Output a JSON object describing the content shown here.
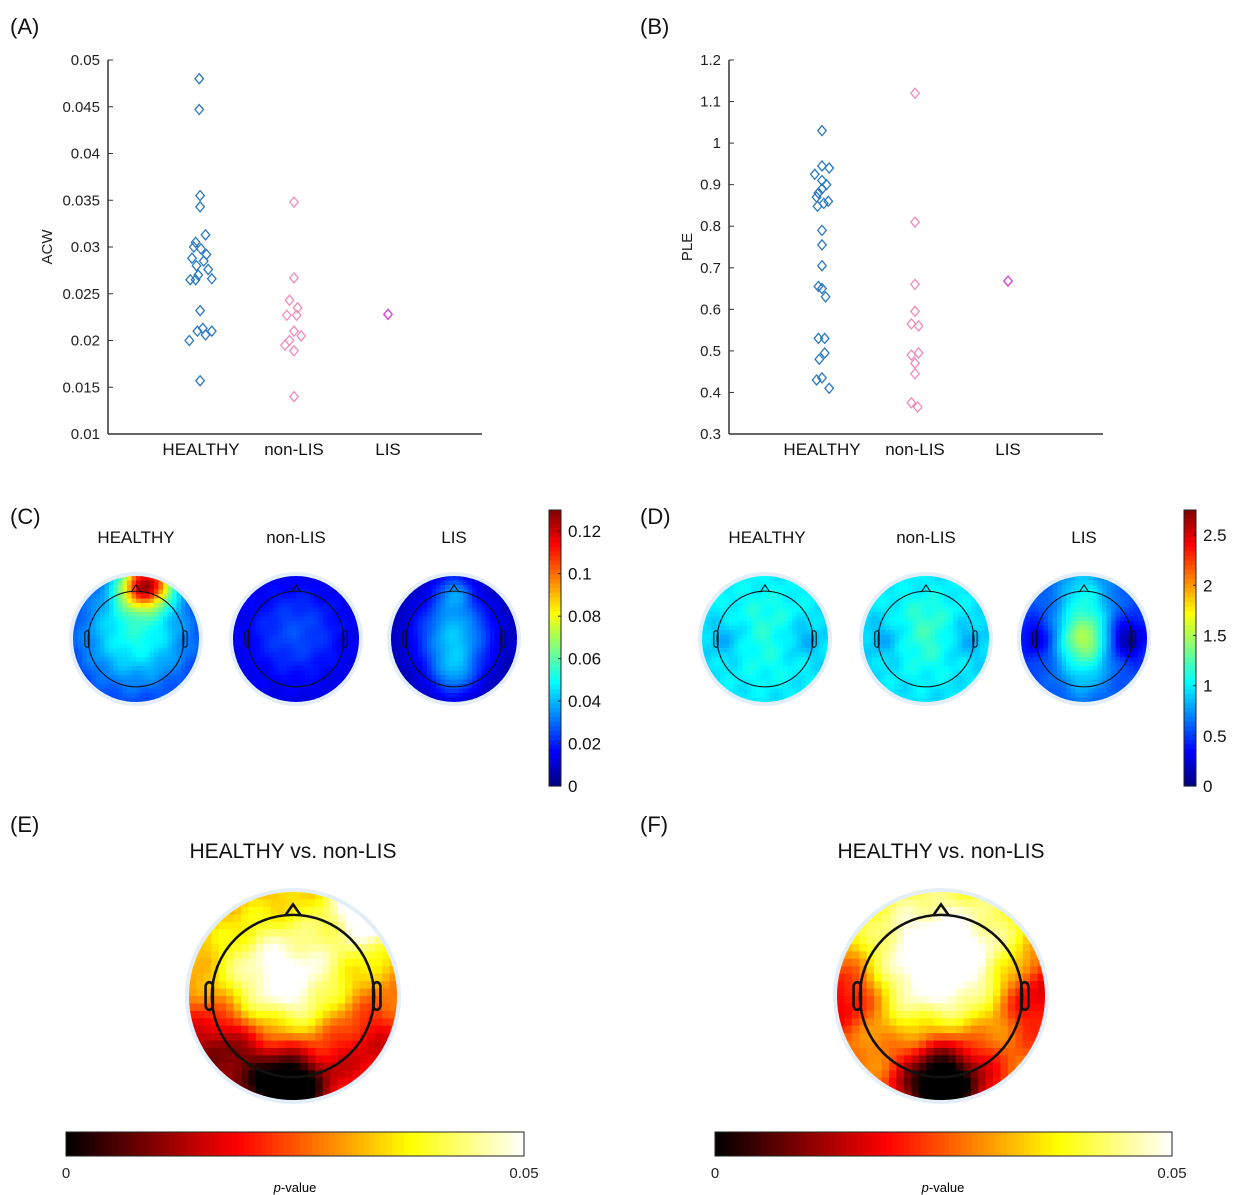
{
  "panel_labels": [
    "(A)",
    "(B)",
    "(C)",
    "(D)",
    "(E)",
    "(F)"
  ],
  "groups": [
    "HEALTHY",
    "non-LIS",
    "LIS"
  ],
  "contrast_title": "HEALTHY vs. non-LIS",
  "colors": {
    "healthy": "#2a78c0",
    "nonlis": "#f18bbd",
    "lis": "#e13ad8"
  },
  "chart_data": [
    {
      "panel": "A",
      "type": "scatter",
      "ylabel": "ACW",
      "ylim": [
        0.01,
        0.05
      ],
      "yticks": [
        0.01,
        0.015,
        0.02,
        0.025,
        0.03,
        0.035,
        0.04,
        0.045,
        0.05
      ],
      "ytick_labels": [
        "0.01",
        "0.015",
        "0.02",
        "0.025",
        "0.03",
        "0.035",
        "0.04",
        "0.045",
        "0.05"
      ],
      "categories": [
        "HEALTHY",
        "non-LIS",
        "LIS"
      ],
      "series": [
        {
          "category": "HEALTHY",
          "marker": "diamond",
          "color_key": "healthy",
          "points": [
            [
              -0.02,
              0.048
            ],
            [
              -0.02,
              0.0447
            ],
            [
              -0.01,
              0.0355
            ],
            [
              -0.01,
              0.0343
            ],
            [
              0.05,
              0.0313
            ],
            [
              -0.06,
              0.0305
            ],
            [
              -0.08,
              0.03
            ],
            [
              0.0,
              0.0298
            ],
            [
              0.06,
              0.0292
            ],
            [
              -0.1,
              0.0288
            ],
            [
              0.03,
              0.0285
            ],
            [
              -0.05,
              0.028
            ],
            [
              0.08,
              0.0276
            ],
            [
              -0.03,
              0.027
            ],
            [
              -0.12,
              0.0265
            ],
            [
              -0.06,
              0.0265
            ],
            [
              0.12,
              0.0266
            ],
            [
              -0.01,
              0.0232
            ],
            [
              0.02,
              0.0213
            ],
            [
              -0.04,
              0.021
            ],
            [
              0.12,
              0.021
            ],
            [
              0.05,
              0.0206
            ],
            [
              -0.13,
              0.02
            ],
            [
              -0.01,
              0.0157
            ]
          ]
        },
        {
          "category": "non-LIS",
          "marker": "diamond",
          "color_key": "nonlis",
          "points": [
            [
              0.0,
              0.0348
            ],
            [
              0.0,
              0.0267
            ],
            [
              -0.05,
              0.0243
            ],
            [
              0.04,
              0.0235
            ],
            [
              -0.08,
              0.0227
            ],
            [
              0.03,
              0.0227
            ],
            [
              0.0,
              0.021
            ],
            [
              0.08,
              0.0205
            ],
            [
              -0.05,
              0.02
            ],
            [
              -0.1,
              0.0195
            ],
            [
              0.0,
              0.0189
            ],
            [
              0.0,
              0.014
            ]
          ]
        },
        {
          "category": "LIS",
          "marker": "diamond",
          "color_key": "lis",
          "points": [
            [
              0.0,
              0.0228
            ]
          ]
        }
      ]
    },
    {
      "panel": "B",
      "type": "scatter",
      "ylabel": "PLE",
      "ylim": [
        0.3,
        1.2
      ],
      "yticks": [
        0.3,
        0.4,
        0.5,
        0.6,
        0.7,
        0.8,
        0.9,
        1.0,
        1.1,
        1.2
      ],
      "ytick_labels": [
        "0.3",
        "0.4",
        "0.5",
        "0.6",
        "0.7",
        "0.8",
        "0.9",
        "1",
        "1.1",
        "1.2"
      ],
      "categories": [
        "HEALTHY",
        "non-LIS",
        "LIS"
      ],
      "series": [
        {
          "category": "HEALTHY",
          "marker": "diamond",
          "color_key": "healthy",
          "points": [
            [
              0.0,
              1.03
            ],
            [
              0.0,
              0.945
            ],
            [
              0.08,
              0.94
            ],
            [
              -0.08,
              0.925
            ],
            [
              0.0,
              0.91
            ],
            [
              0.05,
              0.9
            ],
            [
              -0.04,
              0.88
            ],
            [
              0.0,
              0.89
            ],
            [
              -0.06,
              0.87
            ],
            [
              0.07,
              0.86
            ],
            [
              0.02,
              0.855
            ],
            [
              -0.05,
              0.848
            ],
            [
              0.0,
              0.79
            ],
            [
              0.0,
              0.755
            ],
            [
              0.0,
              0.705
            ],
            [
              -0.04,
              0.655
            ],
            [
              0.0,
              0.65
            ],
            [
              0.04,
              0.63
            ],
            [
              -0.04,
              0.53
            ],
            [
              0.03,
              0.53
            ],
            [
              0.03,
              0.495
            ],
            [
              -0.03,
              0.48
            ],
            [
              -0.06,
              0.43
            ],
            [
              0.0,
              0.435
            ],
            [
              0.08,
              0.41
            ]
          ]
        },
        {
          "category": "non-LIS",
          "marker": "diamond",
          "color_key": "nonlis",
          "points": [
            [
              0.0,
              1.12
            ],
            [
              0.0,
              0.81
            ],
            [
              0.0,
              0.66
            ],
            [
              0.0,
              0.595
            ],
            [
              -0.04,
              0.565
            ],
            [
              0.04,
              0.56
            ],
            [
              -0.04,
              0.49
            ],
            [
              0.04,
              0.495
            ],
            [
              0.0,
              0.47
            ],
            [
              0.0,
              0.445
            ],
            [
              -0.04,
              0.375
            ],
            [
              0.03,
              0.365
            ]
          ]
        },
        {
          "category": "LIS",
          "marker": "diamond",
          "color_key": "lis",
          "points": [
            [
              0.0,
              0.668
            ]
          ]
        }
      ]
    },
    {
      "panel": "C",
      "type": "heatmap",
      "titles": [
        "HEALTHY",
        "non-LIS",
        "LIS"
      ],
      "colormap": "jet",
      "colorbar_range": [
        0,
        0.13
      ],
      "colorbar_ticks": [
        0,
        0.02,
        0.04,
        0.06,
        0.08,
        0.1,
        0.12
      ],
      "colorbar_tick_labels": [
        "0",
        "0.02",
        "0.04",
        "0.06",
        "0.08",
        "0.1",
        "0.12"
      ],
      "maps": [
        {
          "name": "HEALTHY",
          "base": 0.02,
          "blobs": [
            [
              0.5,
              0.45,
              0.3,
              0.032
            ],
            [
              0.62,
              0.05,
              0.13,
              0.07
            ],
            [
              0.5,
              0.1,
              0.12,
              0.035
            ]
          ]
        },
        {
          "name": "non-LIS",
          "base": 0.012,
          "blobs": [
            [
              0.5,
              0.45,
              0.25,
              0.014
            ]
          ]
        },
        {
          "name": "LIS",
          "base": 0.005,
          "blobs": [
            [
              0.5,
              0.45,
              0.22,
              0.035
            ],
            [
              0.5,
              0.78,
              0.14,
              0.022
            ],
            [
              0.5,
              0.12,
              0.1,
              0.02
            ]
          ]
        }
      ]
    },
    {
      "panel": "D",
      "type": "heatmap",
      "titles": [
        "HEALTHY",
        "non-LIS",
        "LIS"
      ],
      "colormap": "jet",
      "colorbar_range": [
        0,
        2.75
      ],
      "colorbar_ticks": [
        0,
        0.5,
        1,
        1.5,
        2,
        2.5
      ],
      "colorbar_tick_labels": [
        "0",
        "0.5",
        "1",
        "1.5",
        "2",
        "2.5"
      ],
      "maps": [
        {
          "name": "HEALTHY",
          "base": 0.95,
          "blobs": [
            [
              0.5,
              0.45,
              0.28,
              0.18
            ],
            [
              0.2,
              0.5,
              0.12,
              -0.2
            ],
            [
              0.8,
              0.5,
              0.12,
              -0.2
            ]
          ]
        },
        {
          "name": "non-LIS",
          "base": 0.95,
          "blobs": [
            [
              0.5,
              0.45,
              0.22,
              0.25
            ],
            [
              0.2,
              0.5,
              0.12,
              -0.2
            ],
            [
              0.8,
              0.5,
              0.12,
              -0.2
            ]
          ]
        },
        {
          "name": "LIS",
          "base": 0.55,
          "blobs": [
            [
              0.5,
              0.5,
              0.17,
              0.95
            ],
            [
              0.5,
              0.12,
              0.14,
              0.4
            ],
            [
              0.82,
              0.5,
              0.12,
              -0.55
            ],
            [
              0.15,
              0.5,
              0.12,
              -0.35
            ],
            [
              0.5,
              0.85,
              0.12,
              0.2
            ]
          ]
        }
      ]
    },
    {
      "panel": "E",
      "type": "heatmap",
      "title": "HEALTHY vs. non-LIS",
      "colormap": "hot",
      "colorbar_range": [
        0,
        0.05
      ],
      "colorbar_tick_labels": [
        "0",
        "0.05"
      ],
      "colorbar_label_italic": "p",
      "colorbar_label_rest": "-value",
      "maps": [
        {
          "name": "HEALTHY vs. non-LIS",
          "base": 0.03,
          "blobs": [
            [
              0.45,
              0.45,
              0.22,
              0.025
            ],
            [
              0.9,
              0.05,
              0.15,
              0.03
            ],
            [
              0.5,
              0.95,
              0.12,
              -0.03
            ],
            [
              0.3,
              0.85,
              0.2,
              -0.02
            ],
            [
              0.1,
              0.7,
              0.15,
              -0.012
            ],
            [
              0.85,
              0.75,
              0.18,
              -0.015
            ]
          ]
        }
      ]
    },
    {
      "panel": "F",
      "type": "heatmap",
      "title": "HEALTHY vs. non-LIS",
      "colormap": "hot",
      "colorbar_range": [
        0,
        0.05
      ],
      "colorbar_tick_labels": [
        "0",
        "0.05"
      ],
      "colorbar_label_italic": "p",
      "colorbar_label_rest": "-value",
      "maps": [
        {
          "name": "HEALTHY vs. non-LIS",
          "base": 0.03,
          "blobs": [
            [
              0.5,
              0.4,
              0.3,
              0.03
            ],
            [
              0.5,
              0.92,
              0.14,
              -0.032
            ],
            [
              0.05,
              0.5,
              0.15,
              -0.02
            ],
            [
              0.95,
              0.5,
              0.15,
              -0.02
            ],
            [
              0.55,
              0.8,
              0.25,
              -0.015
            ]
          ]
        }
      ]
    }
  ]
}
